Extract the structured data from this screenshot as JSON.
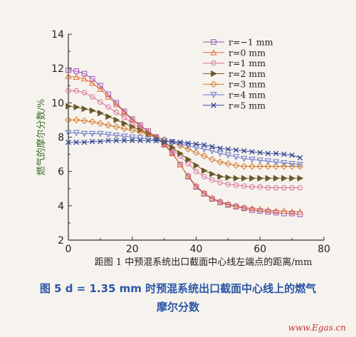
{
  "chart_data": {
    "type": "line",
    "xlabel": "距图 1 中预混系统出口截面中心线左端点的距离/mm",
    "ylabel": "燃气的摩尔分数/%",
    "xlim": [
      0,
      80
    ],
    "ylim": [
      2,
      14
    ],
    "xticks": [
      0,
      20,
      40,
      60,
      80
    ],
    "yticks": [
      2,
      4,
      6,
      8,
      10,
      12,
      14
    ],
    "grid": false,
    "legend_position": "top-right",
    "x": [
      0,
      2.5,
      5,
      7.5,
      10,
      12.5,
      15,
      17.5,
      20,
      22.5,
      25,
      27.5,
      30,
      32.5,
      35,
      37.5,
      40,
      42.5,
      45,
      47.5,
      50,
      52.5,
      55,
      57.5,
      60,
      62.5,
      65,
      67.5,
      70,
      72.5
    ],
    "series": [
      {
        "name": "r=−1 mm",
        "color": "#9a4fb4",
        "marker": "square",
        "values": [
          11.9,
          11.85,
          11.7,
          11.4,
          11.0,
          10.5,
          10.0,
          9.5,
          9.05,
          8.7,
          8.35,
          8.0,
          7.6,
          7.1,
          6.4,
          5.7,
          5.1,
          4.7,
          4.4,
          4.2,
          4.05,
          3.95,
          3.85,
          3.75,
          3.7,
          3.65,
          3.6,
          3.55,
          3.55,
          3.5
        ]
      },
      {
        "name": "r=0 mm",
        "color": "#e0703a",
        "marker": "triangle-up",
        "values": [
          11.55,
          11.5,
          11.4,
          11.15,
          10.8,
          10.35,
          9.9,
          9.45,
          9.0,
          8.65,
          8.3,
          7.95,
          7.55,
          7.05,
          6.4,
          5.75,
          5.15,
          4.75,
          4.45,
          4.25,
          4.1,
          4.0,
          3.9,
          3.85,
          3.8,
          3.75,
          3.7,
          3.7,
          3.65,
          3.65
        ]
      },
      {
        "name": "r=1 mm",
        "color": "#d8749a",
        "marker": "circle",
        "values": [
          10.7,
          10.7,
          10.6,
          10.35,
          10.05,
          9.75,
          9.45,
          9.15,
          8.8,
          8.5,
          8.2,
          7.95,
          7.65,
          7.3,
          6.9,
          6.45,
          6.0,
          5.7,
          5.5,
          5.35,
          5.25,
          5.2,
          5.15,
          5.1,
          5.1,
          5.05,
          5.05,
          5.05,
          5.05,
          5.05
        ]
      },
      {
        "name": "r=2 mm",
        "color": "#6a5a2a",
        "marker": "triangle-right",
        "values": [
          9.8,
          9.75,
          9.65,
          9.55,
          9.4,
          9.2,
          9.0,
          8.8,
          8.6,
          8.4,
          8.2,
          7.95,
          7.7,
          7.4,
          7.05,
          6.7,
          6.35,
          6.05,
          5.85,
          5.7,
          5.65,
          5.6,
          5.6,
          5.6,
          5.6,
          5.6,
          5.6,
          5.6,
          5.6,
          5.6
        ]
      },
      {
        "name": "r=3 mm",
        "color": "#d2782a",
        "marker": "diamond",
        "values": [
          9.0,
          9.0,
          8.95,
          8.9,
          8.8,
          8.7,
          8.6,
          8.5,
          8.4,
          8.3,
          8.15,
          8.0,
          7.85,
          7.7,
          7.5,
          7.3,
          7.1,
          6.9,
          6.7,
          6.55,
          6.45,
          6.35,
          6.3,
          6.3,
          6.3,
          6.3,
          6.3,
          6.3,
          6.3,
          6.3
        ]
      },
      {
        "name": "r=4 mm",
        "color": "#6a78c8",
        "marker": "triangle-down",
        "values": [
          8.25,
          8.25,
          8.2,
          8.2,
          8.2,
          8.15,
          8.1,
          8.05,
          8.0,
          7.95,
          7.9,
          7.85,
          7.8,
          7.7,
          7.6,
          7.5,
          7.4,
          7.3,
          7.2,
          7.05,
          6.95,
          6.85,
          6.75,
          6.7,
          6.65,
          6.6,
          6.55,
          6.5,
          6.45,
          6.4
        ]
      },
      {
        "name": "r=5 mm",
        "color": "#3a4c9a",
        "marker": "cross",
        "values": [
          7.7,
          7.7,
          7.7,
          7.75,
          7.75,
          7.8,
          7.8,
          7.8,
          7.8,
          7.8,
          7.8,
          7.8,
          7.75,
          7.75,
          7.7,
          7.65,
          7.6,
          7.55,
          7.45,
          7.35,
          7.3,
          7.25,
          7.2,
          7.15,
          7.1,
          7.05,
          7.05,
          7.0,
          6.95,
          6.8
        ]
      }
    ]
  },
  "caption": {
    "line1": "图 5   d = 1.35 mm 时预混系统出口截面中心线上的燃气",
    "line2": "摩尔分数"
  },
  "watermark": "www.Egas.cn"
}
